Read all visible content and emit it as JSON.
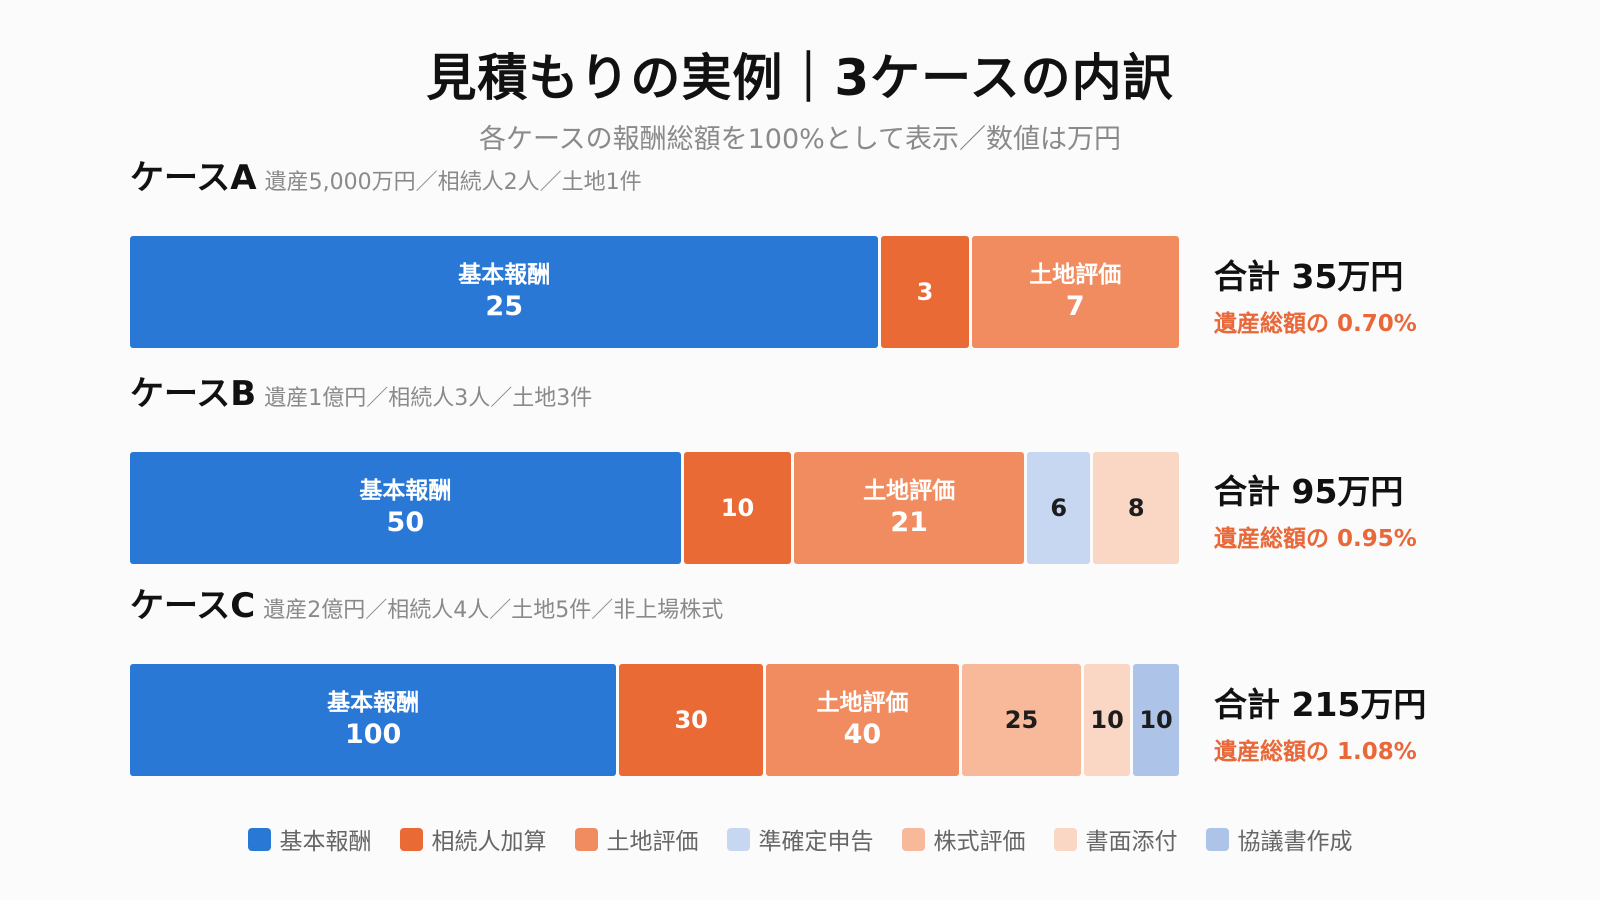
{
  "title": "見積もりの実例｜3ケースの内訳",
  "subtitle": "各ケースの報酬総額を100%として表示／数値は万円",
  "chart_data": {
    "type": "bar",
    "orientation": "horizontal-stacked-100",
    "title": "見積もりの実例｜3ケースの内訳",
    "subtitle": "各ケースの報酬総額を100%として表示／数値は万円",
    "categories": [
      "ケースA",
      "ケースB",
      "ケースC"
    ],
    "descriptions": [
      "遺産5,000万円／相続人2人／土地1件",
      "遺産1億円／相続人3人／土地3件",
      "遺産2億円／相続人4人／土地5件／非上場株式"
    ],
    "series": [
      {
        "name": "基本報酬",
        "color": "#2a78d6",
        "values": [
          25,
          50,
          100
        ]
      },
      {
        "name": "相続人加算",
        "color": "#ea6a36",
        "values": [
          3,
          10,
          30
        ]
      },
      {
        "name": "土地評価",
        "color": "#f18c60",
        "values": [
          7,
          21,
          40
        ]
      },
      {
        "name": "準確定申告",
        "color": "#c7d7f1",
        "values": [
          0,
          6,
          0
        ]
      },
      {
        "name": "株式評価",
        "color": "#f7b999",
        "values": [
          0,
          0,
          25
        ]
      },
      {
        "name": "書面添付",
        "color": "#fad6c5",
        "values": [
          0,
          8,
          10
        ]
      },
      {
        "name": "協議書作成",
        "color": "#aec3e8",
        "values": [
          0,
          0,
          10
        ]
      }
    ],
    "inline_name_series": [
      "基本報酬",
      "土地評価"
    ],
    "totals": [
      "合計 35万円",
      "合計 95万円",
      "合計 215万円"
    ],
    "percent_of_estate": [
      "遺産総額の 0.70%",
      "遺産総額の 0.95%",
      "遺産総額の 1.08%"
    ],
    "legend_position": "bottom",
    "grid": false
  }
}
